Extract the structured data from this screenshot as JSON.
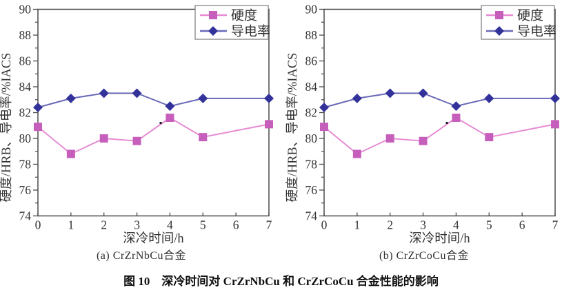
{
  "figure": {
    "title": "图 10　深冷时间对 CrZrNbCu 和 CrZrCoCu 合金性能的影响"
  },
  "colors": {
    "hardness_line": "#e78bd3",
    "hardness_marker": "#c65fbc",
    "conductivity_line": "#6868b8",
    "conductivity_marker": "#32329a",
    "axis": "#4a4a4a",
    "legend_border": "#7a7a7a"
  },
  "chart_data": [
    {
      "type": "line",
      "caption": "(a) CrZrNbCu合金",
      "xlabel": "深冷时间/h",
      "ylabel": "硬度/HRB、导电率/%IACS",
      "xlim": [
        0,
        7
      ],
      "ylim": [
        74,
        90
      ],
      "x_ticks": [
        0,
        1,
        2,
        3,
        4,
        5,
        6,
        7
      ],
      "y_major_ticks": [
        74,
        76,
        78,
        80,
        82,
        84,
        86,
        88,
        90
      ],
      "y_minor_ticks": [
        75,
        77,
        79,
        81,
        83,
        85,
        87,
        89
      ],
      "grid": false,
      "legend_position": "top-right",
      "x": [
        0,
        1,
        2,
        3,
        4,
        5,
        7
      ],
      "series": [
        {
          "name": "硬度",
          "marker": "square",
          "line_color": "#e78bd3",
          "marker_color": "#c65fbc",
          "values": [
            80.9,
            78.8,
            80.0,
            79.8,
            81.6,
            80.1,
            81.1
          ]
        },
        {
          "name": "导电率",
          "marker": "diamond",
          "line_color": "#6868b8",
          "marker_color": "#32329a",
          "values": [
            82.4,
            83.1,
            83.5,
            83.5,
            82.5,
            83.1,
            83.1
          ]
        }
      ],
      "artifact_dot": {
        "x": 3.72,
        "y": 81.2
      }
    },
    {
      "type": "line",
      "caption": "(b) CrZrCoCu合金",
      "xlabel": "深冷时间/h",
      "ylabel": "硬度/HRB、导电率/%IACS",
      "xlim": [
        0,
        7
      ],
      "ylim": [
        74,
        90
      ],
      "x_ticks": [
        0,
        1,
        2,
        3,
        4,
        5,
        6,
        7
      ],
      "y_major_ticks": [
        74,
        76,
        78,
        80,
        82,
        84,
        86,
        88,
        90
      ],
      "y_minor_ticks": [
        75,
        77,
        79,
        81,
        83,
        85,
        87,
        89
      ],
      "grid": false,
      "legend_position": "top-right",
      "x": [
        0,
        1,
        2,
        3,
        4,
        5,
        7
      ],
      "series": [
        {
          "name": "硬度",
          "marker": "square",
          "line_color": "#e78bd3",
          "marker_color": "#c65fbc",
          "values": [
            80.9,
            78.8,
            80.0,
            79.8,
            81.6,
            80.1,
            81.1
          ]
        },
        {
          "name": "导电率",
          "marker": "diamond",
          "line_color": "#6868b8",
          "marker_color": "#32329a",
          "values": [
            82.4,
            83.1,
            83.5,
            83.5,
            82.5,
            83.1,
            83.1
          ]
        }
      ],
      "artifact_dot": {
        "x": 3.72,
        "y": 81.2
      }
    }
  ]
}
